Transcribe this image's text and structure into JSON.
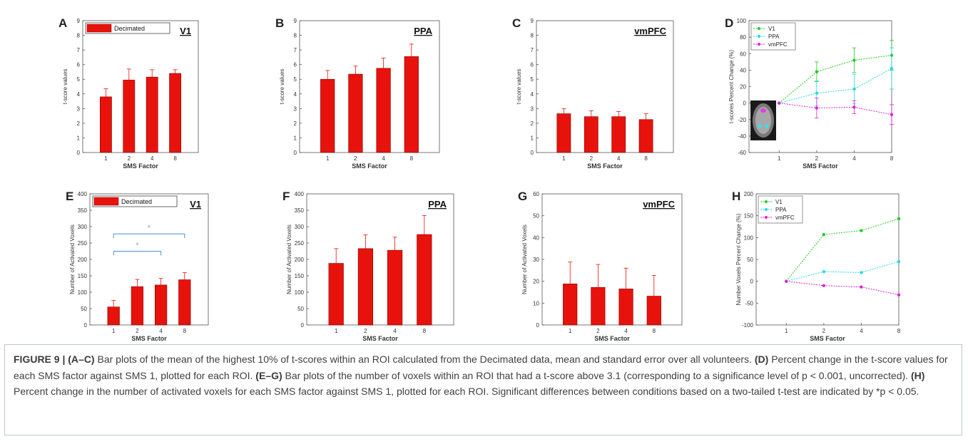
{
  "chart_data": [
    {
      "panel_letter": "A",
      "type": "bar",
      "title": "V1",
      "categories": [
        "1",
        "2",
        "4",
        "8"
      ],
      "series": [
        {
          "name": "Decimated",
          "values": [
            3.8,
            4.95,
            5.15,
            5.4
          ],
          "errors": [
            0.55,
            0.75,
            0.5,
            0.25
          ]
        }
      ],
      "xlabel": "SMS Factor",
      "ylabel": "t-score values",
      "ylim": [
        0,
        9
      ],
      "yticks": [
        "0",
        "1",
        "2",
        "3",
        "4",
        "5",
        "6",
        "7",
        "8",
        "9"
      ],
      "legend": "top-left"
    },
    {
      "panel_letter": "B",
      "type": "bar",
      "title": "PPA",
      "categories": [
        "1",
        "2",
        "4",
        "8"
      ],
      "series": [
        {
          "name": "",
          "values": [
            5.0,
            5.35,
            5.75,
            6.55
          ],
          "errors": [
            0.6,
            0.55,
            0.7,
            0.85
          ]
        }
      ],
      "xlabel": "SMS Factor",
      "ylabel": "t-score values",
      "ylim": [
        0,
        9
      ],
      "yticks": [
        "0",
        "1",
        "2",
        "3",
        "4",
        "5",
        "6",
        "7",
        "8",
        "9"
      ]
    },
    {
      "panel_letter": "C",
      "type": "bar",
      "title": "vmPFC",
      "categories": [
        "1",
        "2",
        "4",
        "8"
      ],
      "series": [
        {
          "name": "",
          "values": [
            2.65,
            2.45,
            2.45,
            2.25
          ],
          "errors": [
            0.35,
            0.4,
            0.35,
            0.4
          ]
        }
      ],
      "xlabel": "SMS Factor",
      "ylabel": "t-score values",
      "ylim": [
        0,
        9
      ],
      "yticks": [
        "0",
        "1",
        "2",
        "3",
        "4",
        "5",
        "6",
        "7",
        "8",
        "9"
      ]
    },
    {
      "panel_letter": "D",
      "type": "line",
      "x": [
        1,
        2,
        4,
        8
      ],
      "series": [
        {
          "name": "V1",
          "color": "#22cc22",
          "values": [
            0,
            38,
            52,
            58
          ],
          "errors": [
            0,
            12,
            15,
            18
          ]
        },
        {
          "name": "PPA",
          "color": "#22dddd",
          "values": [
            0,
            12,
            17,
            42
          ],
          "errors": [
            0,
            15,
            18,
            25
          ]
        },
        {
          "name": "vmPFC",
          "color": "#dd22dd",
          "values": [
            0,
            -6,
            -5,
            -14
          ],
          "errors": [
            0,
            12,
            8,
            12
          ]
        }
      ],
      "xlabel": "SMS Factor",
      "ylabel": "t-scores Percent Change (%)",
      "ylim": [
        -60,
        100
      ],
      "yticks": [
        "-60",
        "-40",
        "-20",
        "0",
        "20",
        "40",
        "60",
        "80",
        "100"
      ],
      "xticklabels": [
        "1",
        "2",
        "4",
        "8"
      ],
      "legend": "top-left",
      "inset": "brain-slice"
    },
    {
      "panel_letter": "E",
      "type": "bar",
      "title": "V1",
      "categories": [
        "1",
        "2",
        "4",
        "8"
      ],
      "series": [
        {
          "name": "Decimated",
          "values": [
            55,
            117,
            122,
            138
          ],
          "errors": [
            20,
            22,
            20,
            22
          ]
        }
      ],
      "xlabel": "SMS Factor",
      "ylabel": "Number of Activated Voxels",
      "ylim": [
        0,
        400
      ],
      "yticks": [
        "0",
        "50",
        "100",
        "150",
        "200",
        "250",
        "300",
        "350",
        "400"
      ],
      "legend": "top-left",
      "significance": [
        {
          "from": "1",
          "to": "8",
          "label": "*"
        },
        {
          "from": "1",
          "to": "4",
          "label": "*"
        }
      ]
    },
    {
      "panel_letter": "F",
      "type": "bar",
      "title": "PPA",
      "categories": [
        "1",
        "2",
        "4",
        "8"
      ],
      "series": [
        {
          "name": "",
          "values": [
            188,
            233,
            228,
            276
          ],
          "errors": [
            45,
            42,
            40,
            58
          ]
        }
      ],
      "xlabel": "SMS Factor",
      "ylabel": "Number of Activated Voxels",
      "ylim": [
        0,
        400
      ],
      "yticks": [
        "0",
        "50",
        "100",
        "150",
        "200",
        "250",
        "300",
        "350",
        "400"
      ]
    },
    {
      "panel_letter": "G",
      "type": "bar",
      "title": "vmPFC",
      "categories": [
        "1",
        "2",
        "4",
        "8"
      ],
      "series": [
        {
          "name": "",
          "values": [
            18.8,
            17.2,
            16.5,
            13.2
          ],
          "errors": [
            10,
            10.5,
            9.5,
            9.5
          ]
        }
      ],
      "xlabel": "SMS Factor",
      "ylabel": "Number of Activated Voxels",
      "ylim": [
        0,
        60
      ],
      "yticks": [
        "0",
        "10",
        "20",
        "30",
        "40",
        "50",
        "60"
      ]
    },
    {
      "panel_letter": "H",
      "type": "line",
      "x": [
        1,
        2,
        4,
        8
      ],
      "series": [
        {
          "name": "V1",
          "color": "#22cc22",
          "values": [
            0,
            107,
            116,
            143
          ]
        },
        {
          "name": "PPA",
          "color": "#22dddd",
          "values": [
            0,
            22,
            20,
            45
          ]
        },
        {
          "name": "vmPFC",
          "color": "#dd22dd",
          "values": [
            0,
            -10,
            -13,
            -31
          ]
        }
      ],
      "xlabel": "SMS Factor",
      "ylabel": "Number Voxels Percent Change (%)",
      "ylim": [
        -100,
        200
      ],
      "yticks": [
        "-100",
        "-50",
        "0",
        "50",
        "100",
        "150",
        "200"
      ],
      "xticklabels": [
        "1",
        "2",
        "4",
        "8"
      ],
      "legend": "top-left"
    }
  ],
  "caption": {
    "figure_label": "FIGURE 9 | ",
    "part1_ref": "(A–C)",
    "part1": " Bar plots of the mean of the highest 10% of t-scores within an ROI calculated from the Decimated data, mean and standard error over all volunteers. ",
    "part2_ref": "(D)",
    "part2": " Percent change in the t-score values for each SMS factor against SMS 1, plotted for each ROI. ",
    "part3_ref": "(E–G)",
    "part3": " Bar plots of the number of voxels within an ROI that had a t-score above 3.1 (corresponding to a significance level of p < 0.001, uncorrected). ",
    "part4_ref": "(H)",
    "part4": " Percent change in the number of activated voxels for each SMS factor against SMS 1, plotted for each ROI. Significant differences between conditions based on a two-tailed t-test are indicated by *p < 0.05."
  }
}
